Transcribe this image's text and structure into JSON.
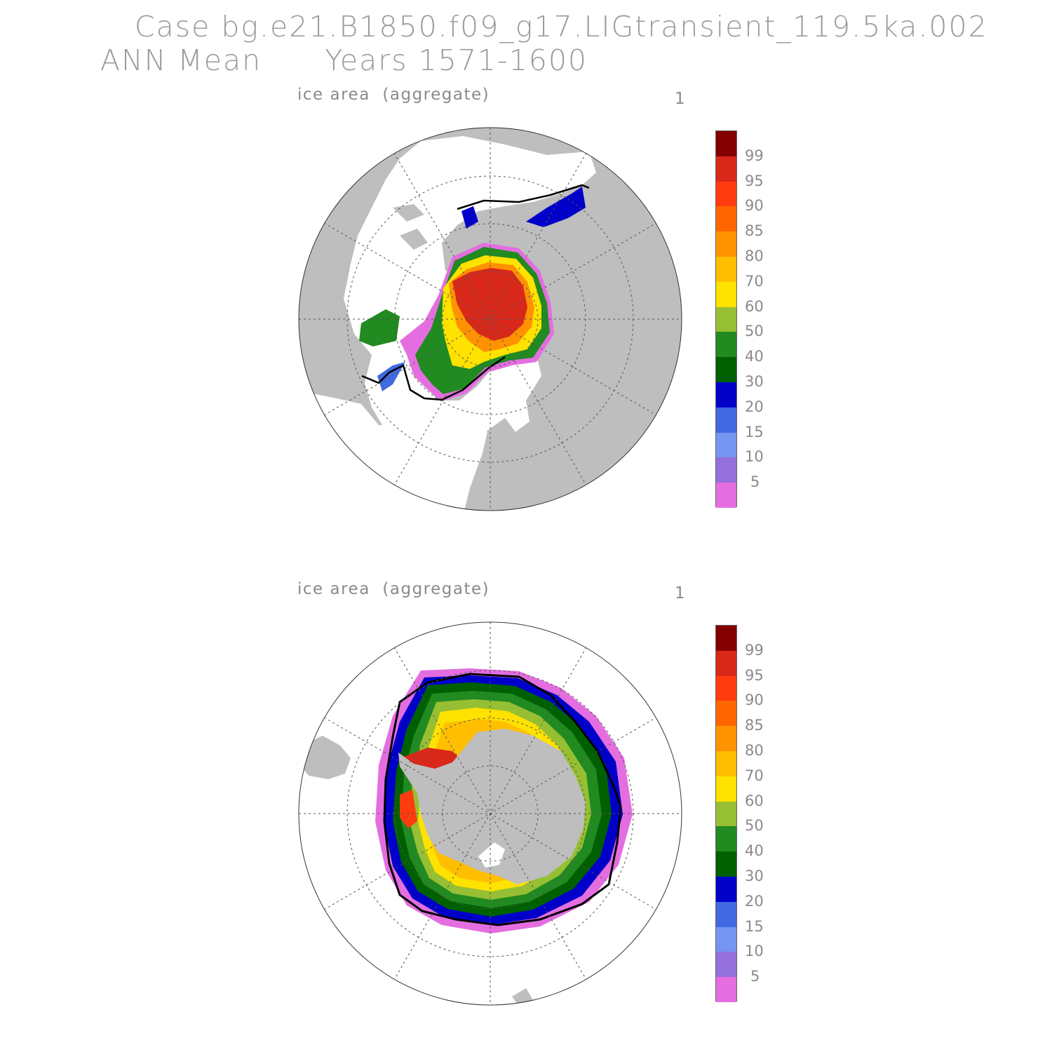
{
  "title": {
    "line1": "Case bg.e21.B1850.f09_g17.LIGtransient_119.5ka.002",
    "line2": "ANN Mean      Years 1571-1600"
  },
  "panels": [
    {
      "hemisphere": "north",
      "label": "ice area  (aggregate)",
      "index": "1"
    },
    {
      "hemisphere": "south",
      "label": "ice area  (aggregate)",
      "index": "1"
    }
  ],
  "colorbar": {
    "labels": [
      "99",
      "95",
      "90",
      "85",
      "80",
      "70",
      "60",
      "50",
      "40",
      "30",
      "20",
      "15",
      "10",
      "5"
    ],
    "colors": [
      "#840000",
      "#d8281a",
      "#ff3b0f",
      "#ff6600",
      "#ff9200",
      "#ffbe00",
      "#ffe200",
      "#97bf33",
      "#218a21",
      "#006000",
      "#0000c8",
      "#4169e1",
      "#7595f0",
      "#9370db",
      "#e46ee0"
    ]
  },
  "map_colors": {
    "land": "#bebebe",
    "ocean": "#ffffff",
    "grid": "#555555",
    "ice_edge": "#000000"
  }
}
